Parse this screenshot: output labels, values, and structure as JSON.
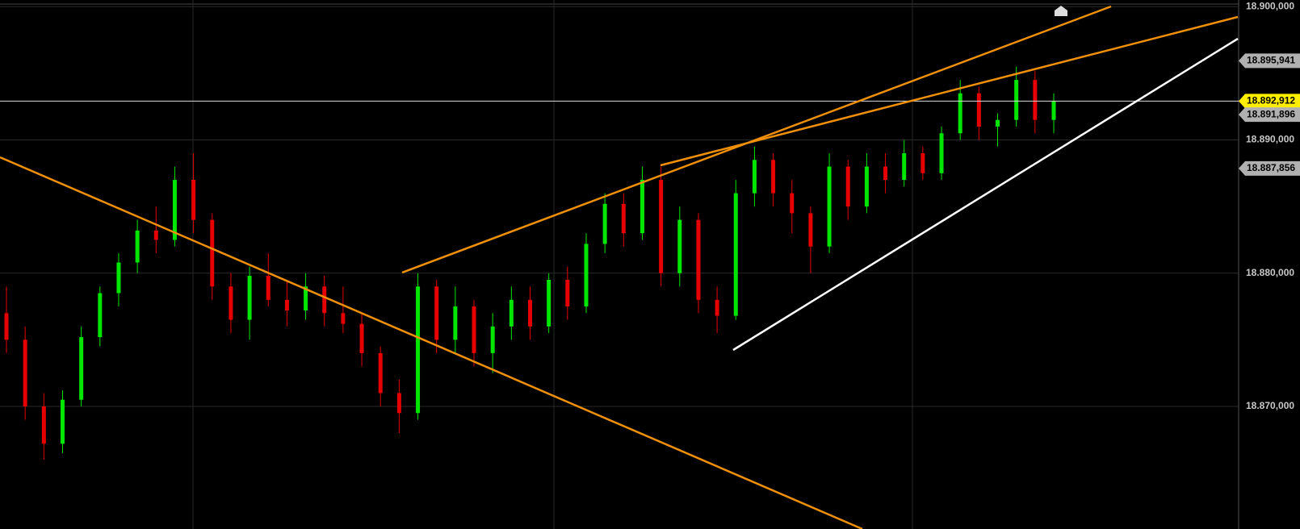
{
  "chart_data": {
    "type": "candlestick",
    "ylim": [
      18.8608,
      18.9005
    ],
    "yticks": [
      {
        "value": 18.87,
        "label": "18.870,000"
      },
      {
        "value": 18.88,
        "label": "18.880,000"
      },
      {
        "value": 18.89,
        "label": "18.890,000"
      },
      {
        "value": 18.9,
        "label": "18.900,000"
      }
    ],
    "grid": true,
    "up_color": "#00e600",
    "down_color": "#e60000",
    "ohlc": [
      [
        18.877,
        18.879,
        18.874,
        18.875
      ],
      [
        18.875,
        18.876,
        18.869,
        18.87
      ],
      [
        18.87,
        18.871,
        18.866,
        18.8672
      ],
      [
        18.8672,
        18.8712,
        18.8665,
        18.8705
      ],
      [
        18.8705,
        18.876,
        18.87,
        18.8752
      ],
      [
        18.8752,
        18.879,
        18.8745,
        18.8785
      ],
      [
        18.8785,
        18.8815,
        18.8775,
        18.8808
      ],
      [
        18.8808,
        18.884,
        18.88,
        18.8832
      ],
      [
        18.8832,
        18.885,
        18.8815,
        18.8825
      ],
      [
        18.8825,
        18.888,
        18.882,
        18.887
      ],
      [
        18.887,
        18.889,
        18.883,
        18.884
      ],
      [
        18.884,
        18.8845,
        18.878,
        18.879
      ],
      [
        18.879,
        18.88,
        18.8755,
        18.8765
      ],
      [
        18.8765,
        18.8805,
        18.875,
        18.8798
      ],
      [
        18.8798,
        18.8815,
        18.8775,
        18.878
      ],
      [
        18.878,
        18.8795,
        18.876,
        18.8772
      ],
      [
        18.8772,
        18.88,
        18.8765,
        18.879
      ],
      [
        18.879,
        18.8798,
        18.876,
        18.877
      ],
      [
        18.877,
        18.879,
        18.8755,
        18.8762
      ],
      [
        18.8762,
        18.877,
        18.873,
        18.874
      ],
      [
        18.874,
        18.8745,
        18.87,
        18.871
      ],
      [
        18.871,
        18.872,
        18.868,
        18.8695
      ],
      [
        18.8695,
        18.88,
        18.869,
        18.879
      ],
      [
        18.879,
        18.8795,
        18.874,
        18.875
      ],
      [
        18.875,
        18.879,
        18.874,
        18.8775
      ],
      [
        18.8775,
        18.878,
        18.873,
        18.874
      ],
      [
        18.874,
        18.877,
        18.8725,
        18.876
      ],
      [
        18.876,
        18.879,
        18.875,
        18.878
      ],
      [
        18.878,
        18.879,
        18.875,
        18.876
      ],
      [
        18.876,
        18.88,
        18.8755,
        18.8795
      ],
      [
        18.8795,
        18.8805,
        18.8765,
        18.8775
      ],
      [
        18.8775,
        18.883,
        18.877,
        18.8822
      ],
      [
        18.8822,
        18.886,
        18.8815,
        18.8852
      ],
      [
        18.8852,
        18.886,
        18.882,
        18.883
      ],
      [
        18.883,
        18.888,
        18.8825,
        18.887
      ],
      [
        18.887,
        18.888,
        18.879,
        18.88
      ],
      [
        18.88,
        18.885,
        18.879,
        18.884
      ],
      [
        18.884,
        18.8845,
        18.877,
        18.878
      ],
      [
        18.878,
        18.879,
        18.8755,
        18.8768
      ],
      [
        18.8768,
        18.887,
        18.8765,
        18.886
      ],
      [
        18.886,
        18.8895,
        18.885,
        18.8885
      ],
      [
        18.8885,
        18.889,
        18.885,
        18.886
      ],
      [
        18.886,
        18.887,
        18.883,
        18.8845
      ],
      [
        18.8845,
        18.885,
        18.88,
        18.882
      ],
      [
        18.882,
        18.889,
        18.8815,
        18.888
      ],
      [
        18.888,
        18.8885,
        18.884,
        18.885
      ],
      [
        18.885,
        18.889,
        18.8845,
        18.888
      ],
      [
        18.888,
        18.889,
        18.886,
        18.887
      ],
      [
        18.887,
        18.89,
        18.8865,
        18.889
      ],
      [
        18.889,
        18.8895,
        18.887,
        18.8875
      ],
      [
        18.8875,
        18.891,
        18.887,
        18.8905
      ],
      [
        18.8905,
        18.8945,
        18.89,
        18.8935
      ],
      [
        18.8935,
        18.894,
        18.89,
        18.891
      ],
      [
        18.891,
        18.892,
        18.8895,
        18.8915
      ],
      [
        18.8915,
        18.8955,
        18.891,
        18.8945
      ],
      [
        18.8945,
        18.8952,
        18.8905,
        18.8915
      ],
      [
        18.8915,
        18.8935,
        18.8905,
        18.8929
      ]
    ],
    "price_markers": [
      {
        "value": 18.895941,
        "label": "18.895,941",
        "color": "#b0b0b0"
      },
      {
        "value": 18.892912,
        "label": "18.892,912",
        "color": "#ffee00"
      },
      {
        "value": 18.891896,
        "label": "18.891,896",
        "color": "#b0b0b0"
      },
      {
        "value": 18.887856,
        "label": "18.887,856",
        "color": "#b0b0b0"
      }
    ]
  }
}
